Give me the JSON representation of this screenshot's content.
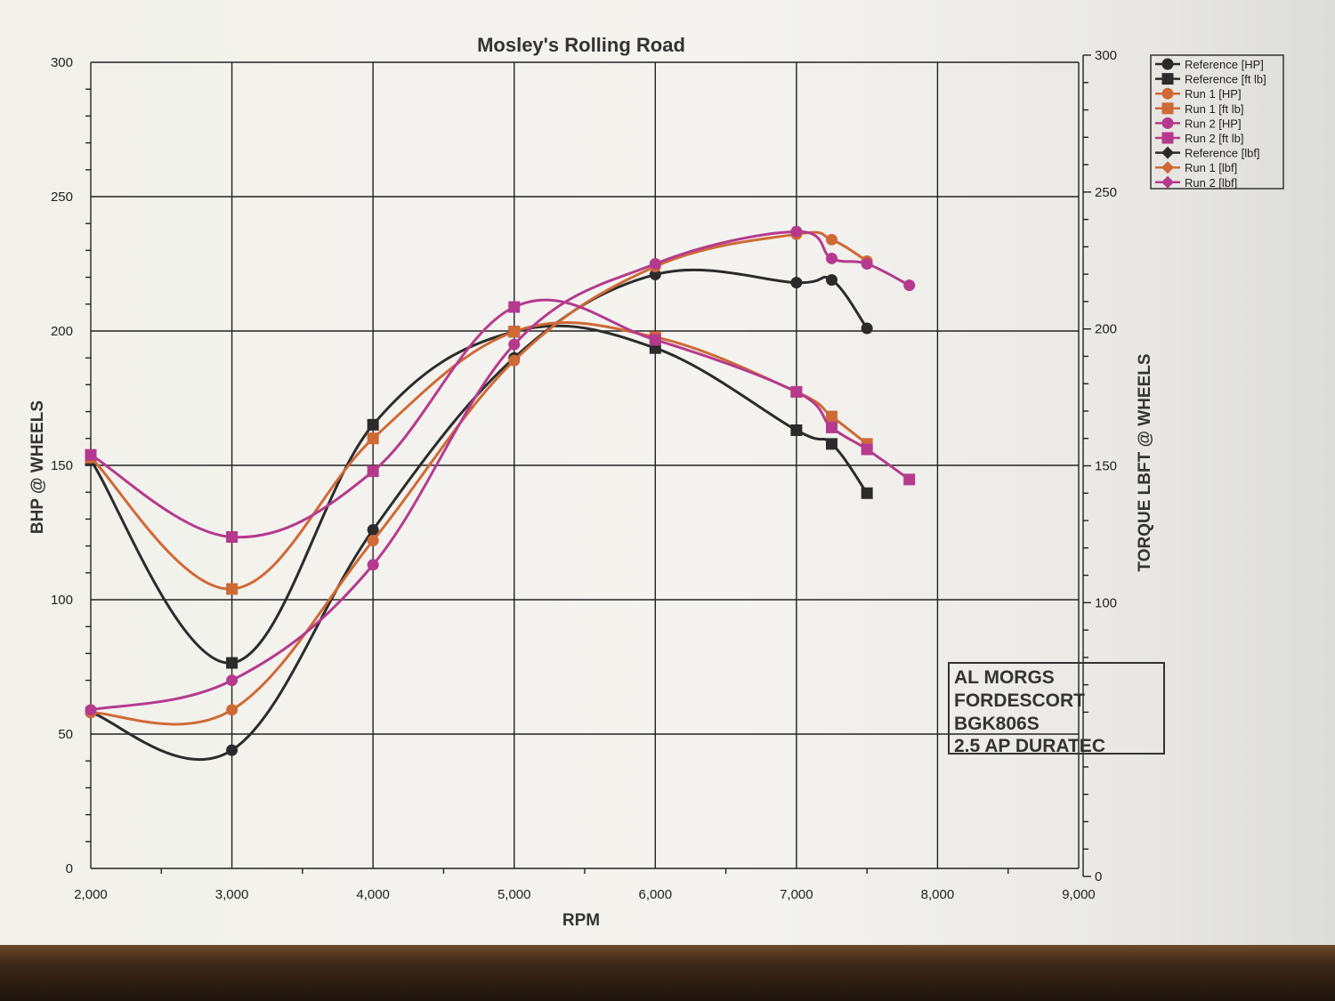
{
  "chart_data": {
    "type": "line",
    "title": "Mosley's Rolling Road",
    "xlabel": "RPM",
    "ylabel": "BHP @ WHEELS",
    "y2label": "TORQUE LBFT @ WHEELS",
    "xlim": [
      2000,
      9000
    ],
    "ylim": [
      0,
      300
    ],
    "y2lim": [
      0,
      300
    ],
    "x_ticks": [
      "2,000",
      "3,000",
      "4,000",
      "5,000",
      "6,000",
      "7,000",
      "8,000",
      "9,000"
    ],
    "y_ticks": [
      "0",
      "50",
      "100",
      "150",
      "200",
      "250",
      "300"
    ],
    "y2_ticks": [
      "0",
      "100",
      "150",
      "200",
      "250",
      "300"
    ],
    "legend_position": "top-right",
    "series": [
      {
        "name": "Reference [HP]",
        "axis": "left",
        "color": "#2b2b2b",
        "marker": "circle",
        "x": [
          2000,
          3000,
          4000,
          5000,
          6000,
          7000,
          7250,
          7500
        ],
        "y": [
          58,
          44,
          126,
          190,
          221,
          218,
          219,
          201
        ]
      },
      {
        "name": "Reference [ft lb]",
        "axis": "right",
        "color": "#2b2b2b",
        "marker": "square",
        "x": [
          2000,
          3000,
          4000,
          5000,
          6000,
          7000,
          7250,
          7500
        ],
        "y": [
          152,
          78,
          165,
          199,
          193,
          163,
          158,
          140
        ]
      },
      {
        "name": "Run 1 [HP]",
        "axis": "left",
        "color": "#cf6a36",
        "marker": "circle",
        "x": [
          2000,
          3000,
          4000,
          5000,
          6000,
          7000,
          7250,
          7500
        ],
        "y": [
          58,
          59,
          122,
          189,
          224,
          236,
          234,
          226
        ]
      },
      {
        "name": "Run 1 [ft lb]",
        "axis": "right",
        "color": "#cf6a36",
        "marker": "square",
        "x": [
          2000,
          3000,
          4000,
          5000,
          6000,
          7000,
          7250,
          7500
        ],
        "y": [
          153,
          105,
          160,
          199,
          197,
          177,
          168,
          158
        ]
      },
      {
        "name": "Run 2 [HP]",
        "axis": "left",
        "color": "#b53a8e",
        "marker": "circle",
        "x": [
          2000,
          3000,
          4000,
          5000,
          6000,
          7000,
          7250,
          7500,
          7800
        ],
        "y": [
          59,
          70,
          113,
          195,
          225,
          237,
          227,
          225,
          217
        ]
      },
      {
        "name": "Run 2 [ft lb]",
        "axis": "right",
        "color": "#b53a8e",
        "marker": "square",
        "x": [
          2000,
          3000,
          4000,
          5000,
          6000,
          7000,
          7250,
          7500,
          7800
        ],
        "y": [
          154,
          124,
          148,
          208,
          196,
          177,
          164,
          156,
          145
        ]
      },
      {
        "name": "Reference [lbf]",
        "axis": "right",
        "color": "#2b2b2b",
        "marker": "diamond",
        "x": [],
        "y": []
      },
      {
        "name": "Run 1 [lbf]",
        "axis": "right",
        "color": "#cf6a36",
        "marker": "diamond",
        "x": [],
        "y": []
      },
      {
        "name": "Run 2 [lbf]",
        "axis": "right",
        "color": "#b53a8e",
        "marker": "diamond",
        "x": [],
        "y": []
      }
    ]
  },
  "info_box": {
    "lines": [
      "AL   MORGS",
      "FORDESCORT",
      "BGK806S",
      "2.5 AP DURATEC"
    ]
  }
}
